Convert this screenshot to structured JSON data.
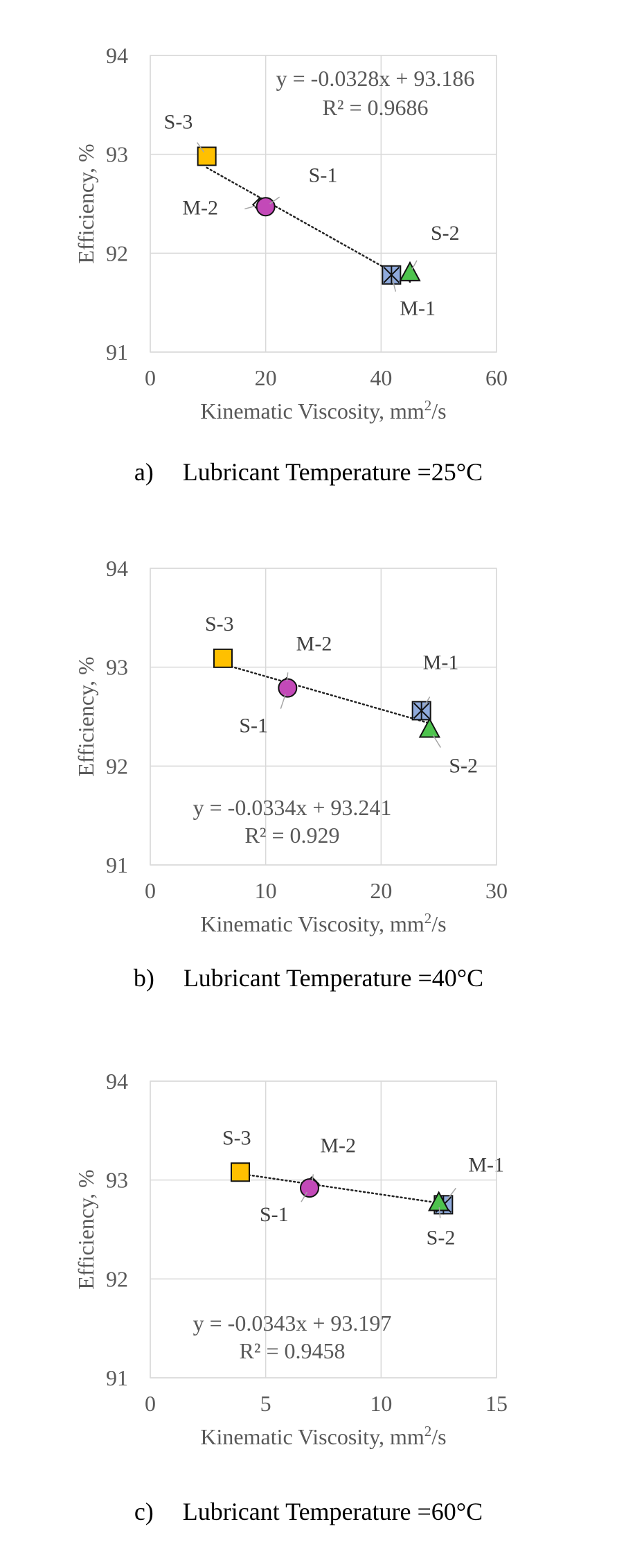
{
  "chart_data": [
    {
      "type": "scatter",
      "title": "",
      "caption_letter": "a)",
      "caption_text": "Lubricant Temperature =25°C",
      "xlabel_main": "Kinematic Viscosity, mm",
      "xlabel_sup": "2",
      "xlabel_tail": "/s",
      "ylabel": "Efficiency, %",
      "xlim": [
        0,
        60
      ],
      "ylim": [
        91,
        94
      ],
      "xticks": [
        "0",
        "20",
        "40",
        "60"
      ],
      "yticks": [
        "91",
        "92",
        "93",
        "94"
      ],
      "grid": true,
      "trendline": {
        "slope": -0.0328,
        "intercept": 93.186,
        "x_range": [
          9.8,
          45
        ]
      },
      "equation": "y = -0.0328x + 93.186",
      "r2": "R² = 0.9686",
      "points": [
        {
          "label": "S-3",
          "x": 9.8,
          "y": 92.98,
          "marker": "square",
          "color": "#FFC000"
        },
        {
          "label": "M-2",
          "x": 19.0,
          "y": 92.49,
          "marker": "diamond",
          "color": "#ffffff"
        },
        {
          "label": "S-1",
          "x": 20.0,
          "y": 92.47,
          "marker": "circle",
          "color": "#C349B8"
        },
        {
          "label": "M-1",
          "x": 41.8,
          "y": 91.78,
          "marker": "asterisk",
          "color": "#8FAADC"
        },
        {
          "label": "S-2",
          "x": 45.0,
          "y": 91.8,
          "marker": "triangle",
          "color": "#4EC34E"
        }
      ]
    },
    {
      "type": "scatter",
      "title": "",
      "caption_letter": "b)",
      "caption_text": "Lubricant Temperature =40°C",
      "xlabel_main": "Kinematic Viscosity, mm",
      "xlabel_sup": "2",
      "xlabel_tail": "/s",
      "ylabel": "Efficiency, %",
      "xlim": [
        0,
        30
      ],
      "ylim": [
        91,
        94
      ],
      "xticks": [
        "0",
        "10",
        "20",
        "30"
      ],
      "yticks": [
        "91",
        "92",
        "93",
        "94"
      ],
      "grid": true,
      "trendline": {
        "slope": -0.0334,
        "intercept": 93.241,
        "x_range": [
          6.3,
          24.2
        ]
      },
      "equation": "y = -0.0334x + 93.241",
      "r2": "R² = 0.929",
      "points": [
        {
          "label": "S-3",
          "x": 6.3,
          "y": 93.09,
          "marker": "square",
          "color": "#FFC000"
        },
        {
          "label": "M-2",
          "x": 11.8,
          "y": 92.82,
          "marker": "diamond",
          "color": "#ffffff"
        },
        {
          "label": "S-1",
          "x": 11.9,
          "y": 92.79,
          "marker": "circle",
          "color": "#C349B8"
        },
        {
          "label": "M-1",
          "x": 23.5,
          "y": 92.56,
          "marker": "asterisk",
          "color": "#8FAADC"
        },
        {
          "label": "S-2",
          "x": 24.2,
          "y": 92.37,
          "marker": "triangle",
          "color": "#4EC34E"
        }
      ]
    },
    {
      "type": "scatter",
      "title": "",
      "caption_letter": "c)",
      "caption_text": "Lubricant Temperature =60°C",
      "xlabel_main": "Kinematic Viscosity, mm",
      "xlabel_sup": "2",
      "xlabel_tail": "/s",
      "ylabel": "Efficiency, %",
      "xlim": [
        0,
        15
      ],
      "ylim": [
        91,
        94
      ],
      "xticks": [
        "0",
        "5",
        "10",
        "15"
      ],
      "yticks": [
        "91",
        "92",
        "93",
        "94"
      ],
      "grid": true,
      "trendline": {
        "slope": -0.0343,
        "intercept": 93.197,
        "x_range": [
          3.9,
          12.8
        ]
      },
      "equation": "y = -0.0343x + 93.197",
      "r2": "R² = 0.9458",
      "points": [
        {
          "label": "S-3",
          "x": 3.9,
          "y": 93.08,
          "marker": "square",
          "color": "#FFC000"
        },
        {
          "label": "M-2",
          "x": 7.0,
          "y": 92.96,
          "marker": "diamond",
          "color": "#ffffff"
        },
        {
          "label": "S-1",
          "x": 6.9,
          "y": 92.92,
          "marker": "circle",
          "color": "#C349B8"
        },
        {
          "label": "M-1",
          "x": 12.7,
          "y": 92.75,
          "marker": "asterisk",
          "color": "#8FAADC"
        },
        {
          "label": "S-2",
          "x": 12.5,
          "y": 92.77,
          "marker": "triangle",
          "color": "#4EC34E"
        }
      ]
    }
  ]
}
